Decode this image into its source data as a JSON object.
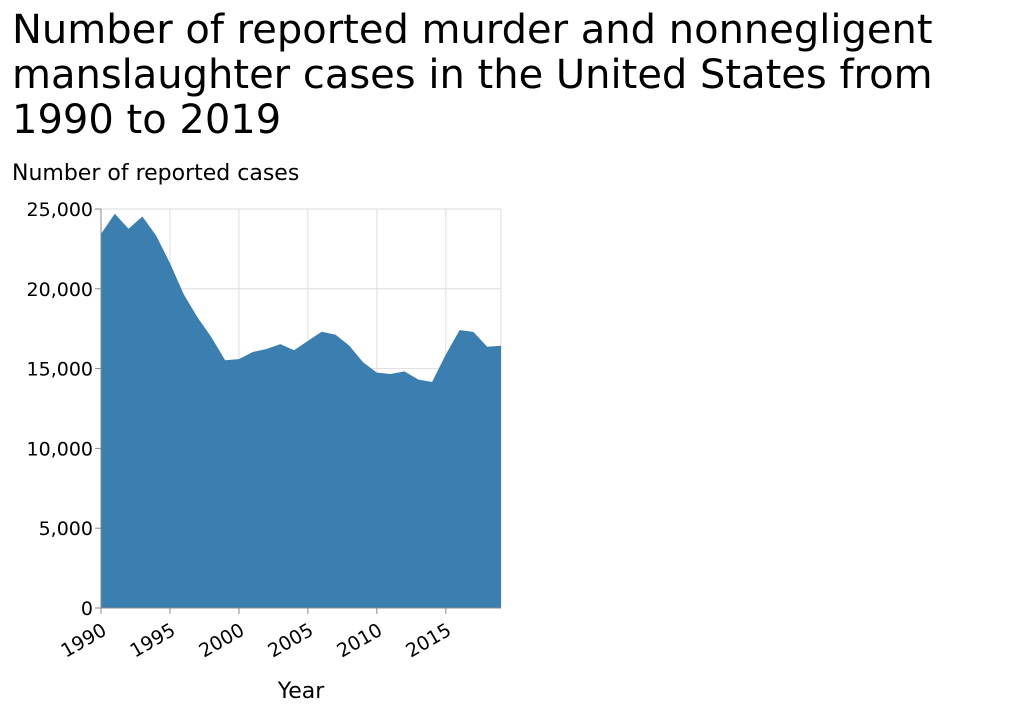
{
  "chart_data": {
    "type": "area",
    "title_lines": [
      "Number of reported murder and nonnegligent",
      "manslaughter cases in the United States from",
      "1990 to 2019"
    ],
    "title": "Number of reported murder and nonnegligent manslaughter cases in the United States from 1990 to 2019",
    "xlabel": "Year",
    "ylabel": "Number of reported cases",
    "xlim": [
      1990,
      2019
    ],
    "ylim": [
      0,
      25000
    ],
    "x_ticks": [
      1990,
      1995,
      2000,
      2005,
      2010,
      2015
    ],
    "x_tick_labels": [
      "1990",
      "1995",
      "2000",
      "2005",
      "2010",
      "2015"
    ],
    "y_ticks": [
      0,
      5000,
      10000,
      15000,
      20000,
      25000
    ],
    "y_tick_labels": [
      "0",
      "5,000",
      "10,000",
      "15,000",
      "20,000",
      "25,000"
    ],
    "grid": true,
    "fill_color": "#3a7fb0",
    "grid_color": "#dddddd",
    "axis_color": "#888888",
    "x": [
      1990,
      1991,
      1992,
      1993,
      1994,
      1995,
      1996,
      1997,
      1998,
      1999,
      2000,
      2001,
      2002,
      2003,
      2004,
      2005,
      2006,
      2007,
      2008,
      2009,
      2010,
      2011,
      2012,
      2013,
      2014,
      2015,
      2016,
      2017,
      2018,
      2019
    ],
    "values": [
      23440,
      24700,
      23760,
      24530,
      23330,
      21610,
      19650,
      18210,
      16970,
      15520,
      15590,
      16040,
      16230,
      16530,
      16150,
      16740,
      17310,
      17130,
      16440,
      15400,
      14750,
      14660,
      14830,
      14320,
      14160,
      15880,
      17410,
      17300,
      16370,
      16430
    ]
  }
}
